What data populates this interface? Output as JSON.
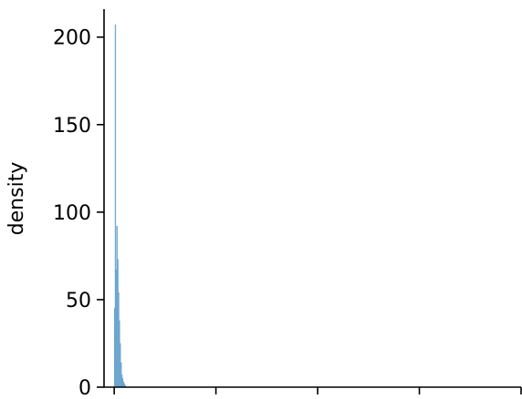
{
  "chart_data": {
    "type": "bar",
    "title": "",
    "xlabel": "",
    "ylabel": "density",
    "ylim": [
      0,
      216
    ],
    "yticks": [
      0,
      50,
      100,
      150,
      200
    ],
    "ytick_labels": [
      "0",
      "50",
      "100",
      "150",
      "200"
    ],
    "xlim": [
      -0.05,
      2.0
    ],
    "xticks": [
      0,
      0.5,
      1.0,
      1.5,
      2.0
    ],
    "grid": false,
    "legend": "none",
    "bar_color": "#7fb3d8",
    "bar_edge_color": "#5b9bc9",
    "bins": [
      {
        "x0": 0.0,
        "x1": 0.004,
        "density": 45
      },
      {
        "x0": 0.004,
        "x1": 0.008,
        "density": 207
      },
      {
        "x0": 0.008,
        "x1": 0.012,
        "density": 67
      },
      {
        "x0": 0.012,
        "x1": 0.016,
        "density": 92
      },
      {
        "x0": 0.016,
        "x1": 0.02,
        "density": 73
      },
      {
        "x0": 0.02,
        "x1": 0.024,
        "density": 54
      },
      {
        "x0": 0.024,
        "x1": 0.028,
        "density": 38
      },
      {
        "x0": 0.028,
        "x1": 0.032,
        "density": 25
      },
      {
        "x0": 0.032,
        "x1": 0.036,
        "density": 14
      },
      {
        "x0": 0.036,
        "x1": 0.04,
        "density": 7
      },
      {
        "x0": 0.04,
        "x1": 0.044,
        "density": 5
      },
      {
        "x0": 0.044,
        "x1": 0.048,
        "density": 3
      },
      {
        "x0": 0.048,
        "x1": 0.052,
        "density": 2
      },
      {
        "x0": 0.052,
        "x1": 0.056,
        "density": 1
      }
    ]
  }
}
